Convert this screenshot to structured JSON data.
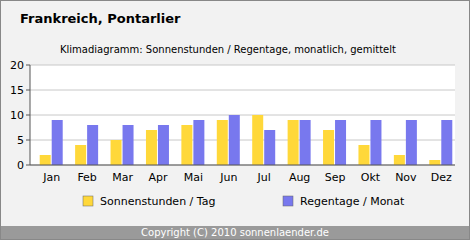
{
  "chart_data": {
    "type": "bar",
    "title": "Frankreich, Pontarlier",
    "subtitle": "Klimadiagramm: Sonnenstunden / Regentage, monatlich, gemittelt",
    "categories": [
      "Jan",
      "Feb",
      "Mar",
      "Apr",
      "Mai",
      "Jun",
      "Jul",
      "Aug",
      "Sep",
      "Okt",
      "Nov",
      "Dez"
    ],
    "series": [
      {
        "name": "Sonnenstunden / Tag",
        "color": "#ffd83a",
        "values": [
          2,
          4,
          5,
          7,
          8,
          9,
          10,
          9,
          7,
          4,
          2,
          1
        ]
      },
      {
        "name": "Regentage / Monat",
        "color": "#7878ee",
        "values": [
          9,
          8,
          8,
          8,
          9,
          10,
          7,
          9,
          9,
          9,
          9,
          9
        ]
      }
    ],
    "ylim": [
      0,
      20
    ],
    "yticks": [
      0,
      5,
      10,
      15,
      20
    ],
    "grid": true,
    "legend": "bottom",
    "annotations": [
      "Copyright (C) 2010 sonnenlaender.de"
    ]
  }
}
